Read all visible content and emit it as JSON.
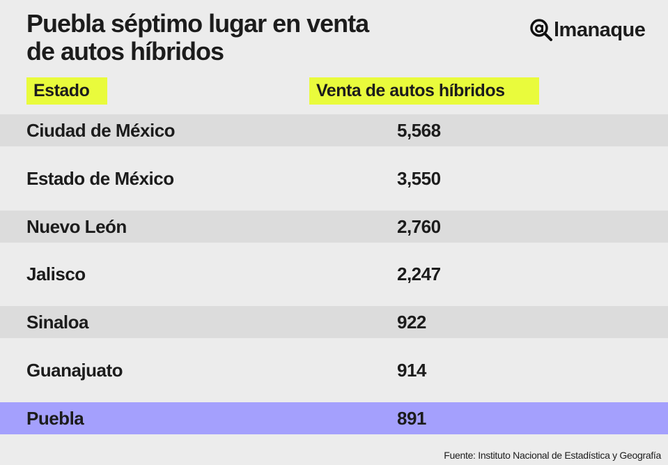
{
  "title_line1": "Puebla séptimo lugar en venta",
  "title_line2": "de autos híbridos",
  "logo": "@lmanaque",
  "colors": {
    "background": "#ececec",
    "header_chip": "#e9fb3c",
    "stripe": "#dcdcdc",
    "highlight": "#a4a0fd"
  },
  "chart_data": {
    "type": "table",
    "title": "Puebla séptimo lugar en venta de autos híbridos",
    "columns": [
      "Estado",
      "Venta de autos híbridos"
    ],
    "rows": [
      {
        "estado": "Ciudad de México",
        "venta": "5,568",
        "value": 5568
      },
      {
        "estado": "Estado de México",
        "venta": "3,550",
        "value": 3550
      },
      {
        "estado": "Nuevo León",
        "venta": "2,760",
        "value": 2760
      },
      {
        "estado": "Jalisco",
        "venta": "2,247",
        "value": 2247
      },
      {
        "estado": "Sinaloa",
        "venta": "922",
        "value": 922
      },
      {
        "estado": "Guanajuato",
        "venta": "914",
        "value": 914
      },
      {
        "estado": "Puebla",
        "venta": "891",
        "value": 891
      }
    ],
    "highlighted_row": "Puebla"
  },
  "source": "Fuente:  Instituto Nacional de Estadística y Geografía"
}
